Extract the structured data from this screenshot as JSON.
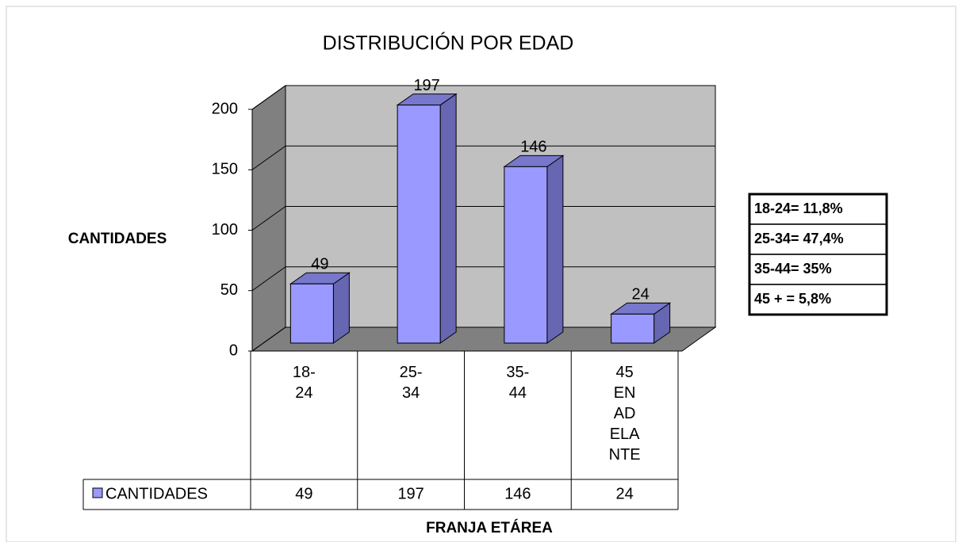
{
  "chart_data": {
    "type": "bar",
    "title": "DISTRIBUCIÓN POR EDAD",
    "y_label": "CANTIDADES",
    "x_label": "FRANJA ETÁREA",
    "categories": [
      "18-24",
      "25-34",
      "35-44",
      "45 EN ADELANTE"
    ],
    "series": [
      {
        "name": "CANTIDADES",
        "color": "#9999ff",
        "values": [
          49,
          197,
          146,
          24
        ]
      }
    ],
    "ylim": [
      0,
      200
    ],
    "yticks": [
      0,
      50,
      100,
      150,
      200
    ],
    "grid": true,
    "annotations": [
      "18-24= 11,8%",
      "25-34= 47,4%",
      "35-44= 35%",
      "45 + = 5,8%"
    ]
  }
}
